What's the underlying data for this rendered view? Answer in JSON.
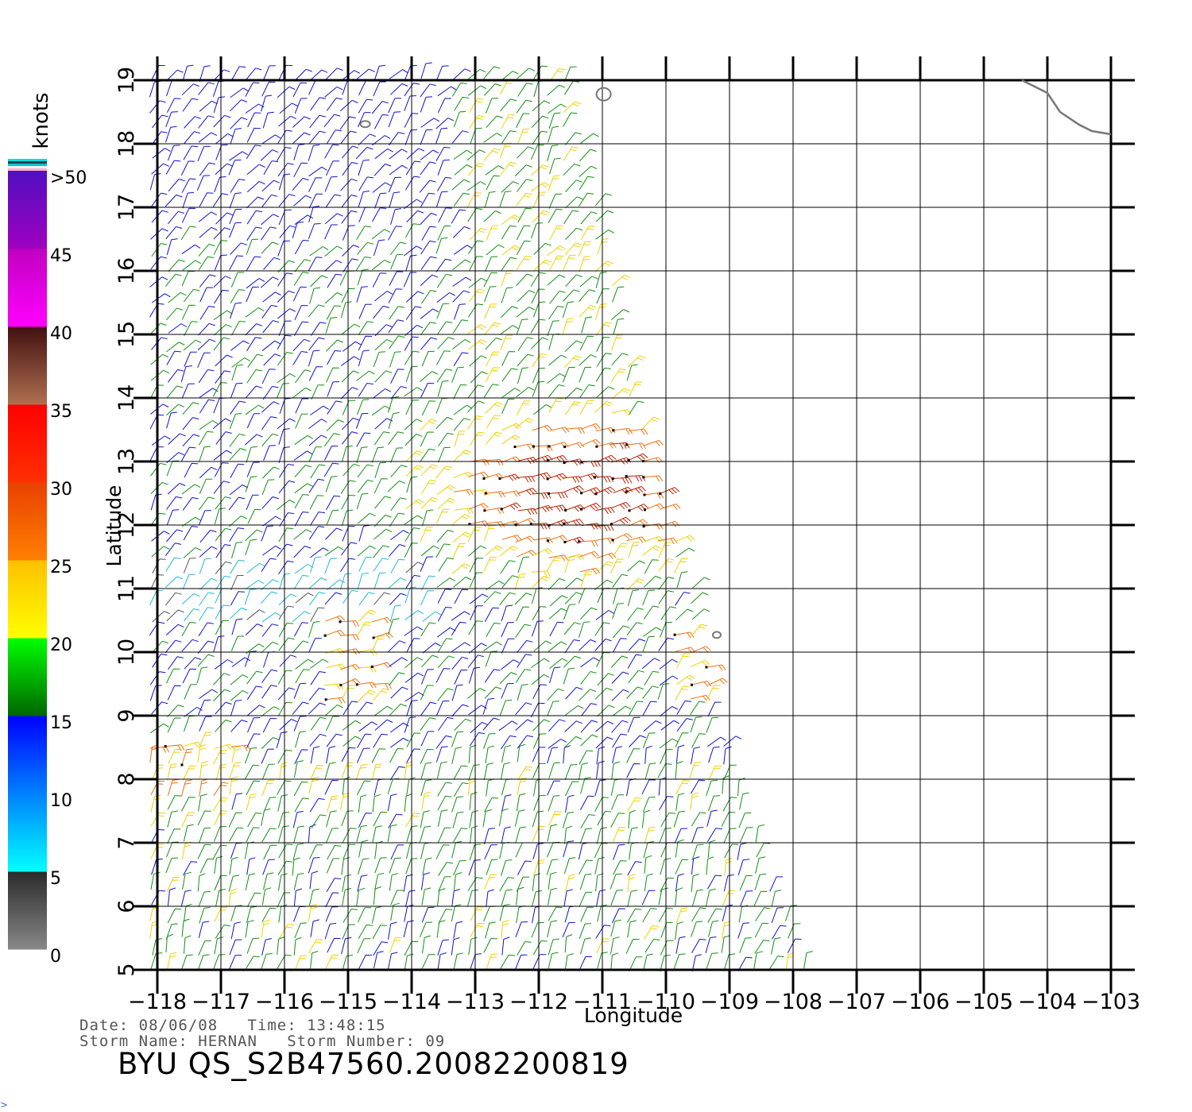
{
  "map": {
    "x_axis_title": "Longitude",
    "y_axis_title": "Latitude",
    "lon_ticks": [
      -118,
      -117,
      -116,
      -115,
      -114,
      -113,
      -112,
      -111,
      -110,
      -109,
      -108,
      -107,
      -106,
      -105,
      -104,
      -103
    ],
    "lon_tick_labels": [
      "−118",
      "−117",
      "−116",
      "−115",
      "−114",
      "−113",
      "−112",
      "−111",
      "−110",
      "−109",
      "−108",
      "−107",
      "−106",
      "−105",
      "−104",
      "−103"
    ],
    "lat_ticks": [
      5,
      6,
      7,
      8,
      9,
      10,
      11,
      12,
      13,
      14,
      15,
      16,
      17,
      18,
      19
    ],
    "lat_tick_labels": [
      "5",
      "6",
      "7",
      "8",
      "9",
      "10",
      "11",
      "12",
      "13",
      "14",
      "15",
      "16",
      "17",
      "18",
      "19"
    ],
    "lon_range": [
      -118,
      -103
    ],
    "lat_range": [
      5,
      19
    ],
    "grid": true,
    "swath_east_edge_lon": [
      [
        5,
        -107.8
      ],
      [
        7,
        -108.6
      ],
      [
        9,
        -109.2
      ],
      [
        11,
        -109.6
      ],
      [
        13,
        -110.2
      ],
      [
        15,
        -110.7
      ],
      [
        17,
        -111.1
      ],
      [
        19,
        -111.6
      ]
    ],
    "high_wind_center": {
      "lon": -111.5,
      "lat": 12.5
    }
  },
  "legend": {
    "units": "knots",
    "labels": [
      ">50",
      "45",
      "40",
      "35",
      "30",
      "25",
      "20",
      "15",
      "10",
      "5",
      "0"
    ],
    "bands": [
      {
        "min": 0,
        "max": 5,
        "colors": [
          "#888888",
          "#2a2a2a"
        ]
      },
      {
        "min": 5,
        "max": 10,
        "colors": [
          "#00ffff",
          "#0080ff"
        ]
      },
      {
        "min": 10,
        "max": 15,
        "colors": [
          "#0080ff",
          "#0000ff"
        ]
      },
      {
        "min": 15,
        "max": 20,
        "colors": [
          "#006600",
          "#00ff00"
        ]
      },
      {
        "min": 20,
        "max": 25,
        "colors": [
          "#ffff00",
          "#ffc000"
        ]
      },
      {
        "min": 25,
        "max": 30,
        "colors": [
          "#ff8000",
          "#e84000"
        ]
      },
      {
        "min": 30,
        "max": 35,
        "colors": [
          "#ff3000",
          "#ff0000"
        ]
      },
      {
        "min": 35,
        "max": 40,
        "colors": [
          "#b07050",
          "#401010"
        ]
      },
      {
        "min": 40,
        "max": 45,
        "colors": [
          "#ff00ff",
          "#c000c0"
        ]
      },
      {
        "min": 45,
        "max": 50,
        "colors": [
          "#a000c0",
          "#5010c0"
        ]
      }
    ]
  },
  "meta": {
    "date_line": "Date: 08/06/08   Time: 13:48:15",
    "storm_line": "Storm Name: HERNAN   Storm Number: 09"
  },
  "footer": {
    "title": "BYU QS_S2B47560.20082200819"
  },
  "colors": {
    "calm": "#555555",
    "light": "#20b8e0",
    "moderate": "#1010d0",
    "fresh": "#109010",
    "strong": "#f0d000",
    "gale": "#f07010",
    "storm": "#c02000",
    "coastline": "#777777"
  }
}
